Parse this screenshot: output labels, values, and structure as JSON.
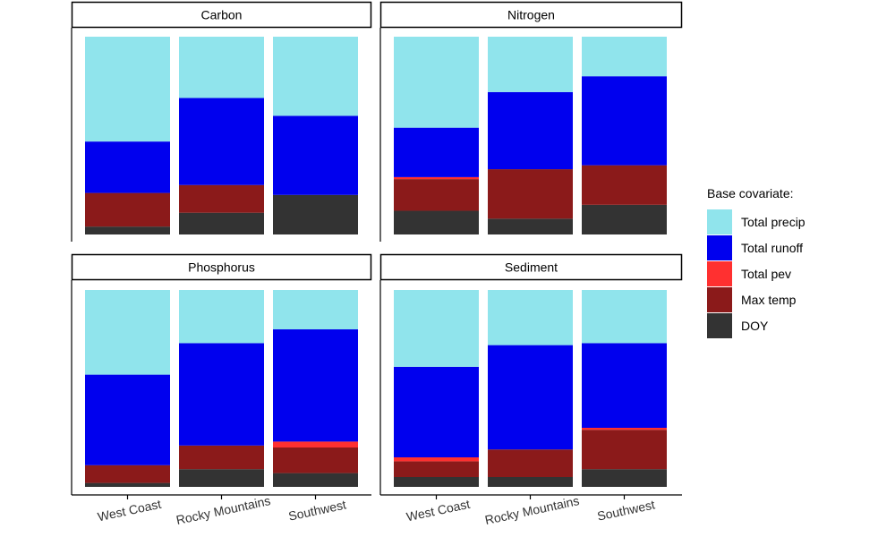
{
  "chart_data": {
    "type": "bar",
    "stacked": "proportional",
    "ylim": [
      0,
      1
    ],
    "categories": [
      "West Coast",
      "Rocky Mountains",
      "Southwest"
    ],
    "legend": {
      "title": "Base covariate:",
      "position": "right",
      "entries": [
        {
          "name": "Total precip",
          "color": "#90e4ec"
        },
        {
          "name": "Total runoff",
          "color": "#0000ee"
        },
        {
          "name": "Total pev",
          "color": "#ff3030"
        },
        {
          "name": "Max temp",
          "color": "#8b1a1a"
        },
        {
          "name": "DOY",
          "color": "#333333"
        }
      ]
    },
    "panels": [
      {
        "title": "Carbon",
        "show_x_labels": false,
        "series": [
          {
            "name": "DOY",
            "values": [
              0.04,
              0.11,
              0.2
            ]
          },
          {
            "name": "Max temp",
            "values": [
              0.17,
              0.14,
              0.0
            ]
          },
          {
            "name": "Total pev",
            "values": [
              0.0,
              0.0,
              0.0
            ]
          },
          {
            "name": "Total runoff",
            "values": [
              0.26,
              0.44,
              0.4
            ]
          },
          {
            "name": "Total precip",
            "values": [
              0.53,
              0.31,
              0.4
            ]
          }
        ]
      },
      {
        "title": "Nitrogen",
        "show_x_labels": false,
        "series": [
          {
            "name": "DOY",
            "values": [
              0.12,
              0.08,
              0.15
            ]
          },
          {
            "name": "Max temp",
            "values": [
              0.16,
              0.25,
              0.2
            ]
          },
          {
            "name": "Total pev",
            "values": [
              0.01,
              0.0,
              0.0
            ]
          },
          {
            "name": "Total runoff",
            "values": [
              0.25,
              0.39,
              0.45
            ]
          },
          {
            "name": "Total precip",
            "values": [
              0.46,
              0.28,
              0.2
            ]
          }
        ]
      },
      {
        "title": "Phosphorus",
        "show_x_labels": true,
        "series": [
          {
            "name": "DOY",
            "values": [
              0.02,
              0.09,
              0.07
            ]
          },
          {
            "name": "Max temp",
            "values": [
              0.09,
              0.12,
              0.13
            ]
          },
          {
            "name": "Total pev",
            "values": [
              0.0,
              0.0,
              0.03
            ]
          },
          {
            "name": "Total runoff",
            "values": [
              0.46,
              0.52,
              0.57
            ]
          },
          {
            "name": "Total precip",
            "values": [
              0.43,
              0.27,
              0.2
            ]
          }
        ]
      },
      {
        "title": "Sediment",
        "show_x_labels": true,
        "series": [
          {
            "name": "DOY",
            "values": [
              0.05,
              0.05,
              0.09
            ]
          },
          {
            "name": "Max temp",
            "values": [
              0.08,
              0.14,
              0.2
            ]
          },
          {
            "name": "Total pev",
            "values": [
              0.02,
              0.0,
              0.01
            ]
          },
          {
            "name": "Total runoff",
            "values": [
              0.46,
              0.53,
              0.43
            ]
          },
          {
            "name": "Total precip",
            "values": [
              0.39,
              0.28,
              0.27
            ]
          }
        ]
      }
    ]
  }
}
